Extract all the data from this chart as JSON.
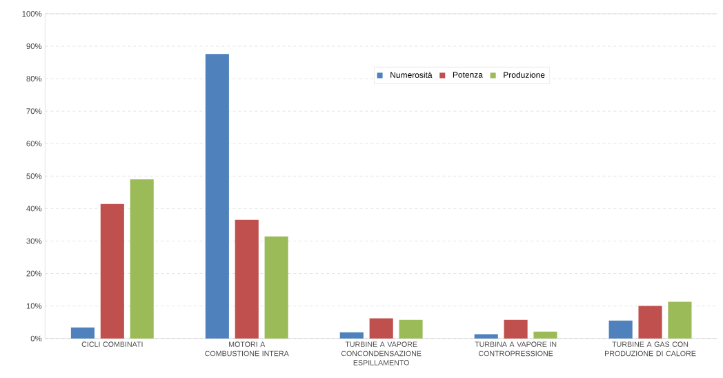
{
  "chart_data": {
    "type": "bar",
    "categories": [
      "CICLI COMBINATI",
      "MOTORI A COMBUSTIONE INTERA",
      "TURBINE A VAPORE CONCONDENSAZIONE ESPILLAMENTO",
      "TURBINA A VAPORE IN CONTROPRESSIONE",
      "TURBINE A GAS CON PRODUZIONE DI CALORE"
    ],
    "series": [
      {
        "name": "Numerosità",
        "color": "#4f81bd",
        "values": [
          3.4,
          87.6,
          1.9,
          1.3,
          5.5
        ]
      },
      {
        "name": "Potenza",
        "color": "#c0504d",
        "values": [
          41.4,
          36.5,
          6.2,
          5.7,
          10.0
        ]
      },
      {
        "name": "Produzione",
        "color": "#9bbb59",
        "values": [
          49.0,
          31.4,
          5.7,
          2.1,
          11.3
        ]
      }
    ],
    "ylim": [
      0,
      100
    ],
    "yticks": [
      {
        "value": 0,
        "label": "0%"
      },
      {
        "value": 10,
        "label": "10%"
      },
      {
        "value": 20,
        "label": "20%"
      },
      {
        "value": 30,
        "label": "30%"
      },
      {
        "value": 40,
        "label": "40%"
      },
      {
        "value": 50,
        "label": "50%"
      },
      {
        "value": 60,
        "label": "60%"
      },
      {
        "value": 70,
        "label": "70%"
      },
      {
        "value": 80,
        "label": "80%"
      },
      {
        "value": 90,
        "label": "90%"
      },
      {
        "value": 100,
        "label": "100%"
      }
    ],
    "grid": "y",
    "legend": "top"
  }
}
